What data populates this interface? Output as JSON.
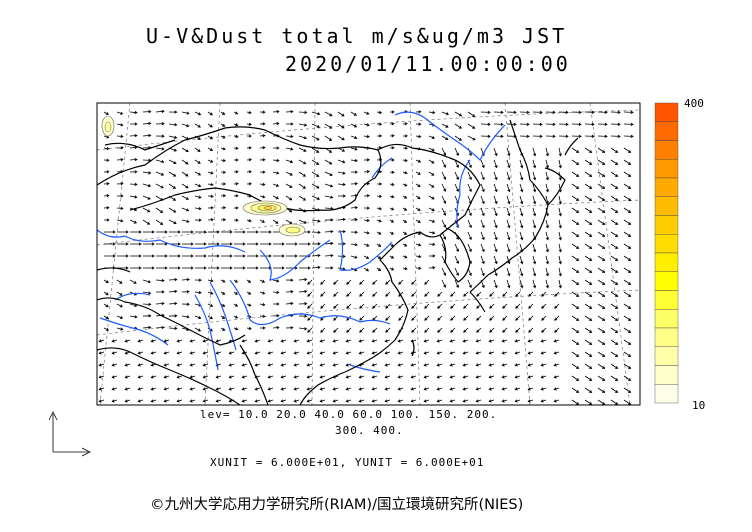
{
  "title": {
    "line1": "U-V&Dust total m/s&ug/m3 JST",
    "line2": "2020/01/11.00:00:00"
  },
  "legend": {
    "levels_line1": "lev= 10.0 20.0 40.0 60.0 100. 150. 200.",
    "levels_line2": "300. 400.",
    "units": "XUNIT = 6.000E+01, YUNIT = 6.000E+01"
  },
  "colorbar": {
    "max_label": "400",
    "min_label": "10",
    "colors": [
      "#ff5500",
      "#ff6a00",
      "#ff8000",
      "#ff9900",
      "#ffaa00",
      "#ffbb00",
      "#ffcc00",
      "#ffdd00",
      "#ffee00",
      "#ffff00",
      "#ffff33",
      "#ffff66",
      "#ffff88",
      "#ffffaa",
      "#ffffcc",
      "#ffffe8"
    ]
  },
  "map": {
    "region": "East Asia",
    "vector_field": "wind (U-V)",
    "dust_contours": "yellow shaded"
  },
  "copyright": "©九州大学応用力学研究所(RIAM)/国立環境研究所(NIES)"
}
